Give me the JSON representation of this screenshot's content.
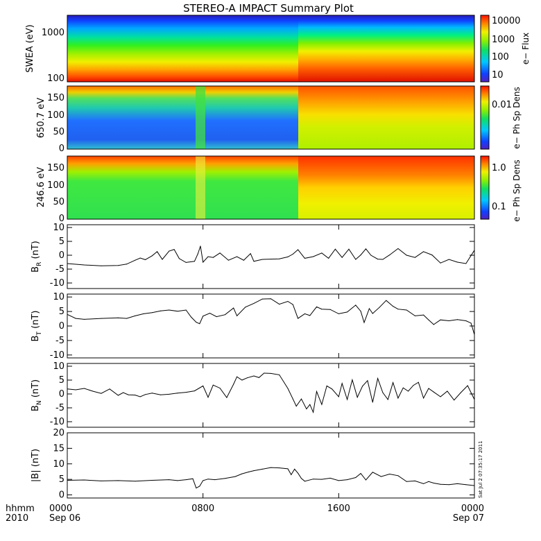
{
  "title": "STEREO-A IMPACT Summary Plot",
  "timestamp": "Sat Jul  2 07:35:17 2011",
  "time_axis": {
    "row1_label": "hhmm",
    "row2_label": "2010",
    "ticks": [
      {
        "t": 0,
        "top": "0000",
        "bottom": "Sep 06"
      },
      {
        "t": 8,
        "top": "0800",
        "bottom": ""
      },
      {
        "t": 16,
        "top": "1600",
        "bottom": ""
      },
      {
        "t": 24,
        "top": "0000",
        "bottom": "Sep 07"
      }
    ]
  },
  "chart_data": [
    {
      "type": "heatmap",
      "ylabel": "SWEA (eV)",
      "y_scale": "log",
      "ylim": [
        100,
        2000
      ],
      "yticks": [
        "1000",
        "100"
      ],
      "colorbar_label": "e− Flux",
      "colorbar_scale": "log",
      "colorbar_ticks": [
        "10000",
        "1000",
        "100",
        "10"
      ],
      "description_of_structure": "energy spectrogram, flux decreasing with energy; brighter after ~13:00"
    },
    {
      "type": "heatmap",
      "ylabel": "650.7 eV",
      "ylim": [
        0,
        180
      ],
      "yticks": [
        "150",
        "100",
        "50",
        "0"
      ],
      "colorbar_label": "e− Ph Sp Dens",
      "colorbar_scale": "log",
      "colorbar_ticks": [
        "0.01"
      ]
    },
    {
      "type": "heatmap",
      "ylabel": "246.6 eV",
      "ylim": [
        0,
        180
      ],
      "yticks": [
        "150",
        "100",
        "50",
        "0"
      ],
      "colorbar_label": "e− Ph Sp Dens",
      "colorbar_scale": "log",
      "colorbar_ticks": [
        "1.0",
        "0.1"
      ]
    },
    {
      "type": "line",
      "ylabel": "B",
      "ylabel_sub": "R",
      "ylabel_unit": "(nT)",
      "ylim": [
        -12,
        11
      ],
      "yticks": [
        "10",
        "5",
        "0",
        "-5",
        "-10"
      ],
      "x_hours": [
        0,
        1,
        2,
        3,
        3.5,
        4,
        4.3,
        4.6,
        5,
        5.3,
        5.6,
        6,
        6.3,
        6.6,
        7,
        7.5,
        7.7,
        7.85,
        8,
        8.3,
        8.6,
        9,
        9.5,
        10,
        10.4,
        10.8,
        11,
        11.5,
        12,
        12.5,
        13,
        13.3,
        13.6,
        14,
        14.5,
        15,
        15.4,
        15.8,
        16.2,
        16.6,
        17,
        17.3,
        17.6,
        17.9,
        18.3,
        18.6,
        19,
        19.5,
        20,
        20.5,
        21,
        21.5,
        22,
        22.5,
        23,
        23.5,
        24
      ],
      "values": [
        -3,
        -3.5,
        -3.8,
        -3.7,
        -3.2,
        -1.8,
        -1,
        -1.6,
        -0.2,
        1.3,
        -1.5,
        1.5,
        2.1,
        -1.2,
        -2.6,
        -2.2,
        0.5,
        3.3,
        -2.5,
        -0.5,
        -0.8,
        0.8,
        -1.8,
        -0.5,
        -1.8,
        0.6,
        -2.2,
        -1.5,
        -1.4,
        -1.3,
        -0.6,
        0.4,
        2,
        -1.1,
        -0.5,
        0.8,
        -1.1,
        2.2,
        -0.8,
        2.2,
        -1.5,
        0.1,
        2.3,
        0,
        -1.4,
        -1.5,
        0.1,
        2.4,
        0,
        -0.8,
        1.3,
        0.1,
        -2.8,
        -1.5,
        -2.5,
        -3,
        1.8
      ]
    },
    {
      "type": "line",
      "ylabel": "B",
      "ylabel_sub": "T",
      "ylabel_unit": "(nT)",
      "ylim": [
        -11,
        11
      ],
      "yticks": [
        "10",
        "5",
        "0",
        "-5",
        "-10"
      ],
      "x_hours": [
        0,
        0.5,
        1,
        2,
        3,
        3.5,
        4,
        4.5,
        5,
        5.5,
        6,
        6.5,
        7,
        7.3,
        7.6,
        7.8,
        8,
        8.4,
        8.8,
        9.3,
        9.8,
        10,
        10.5,
        11,
        11.5,
        12,
        12.5,
        13,
        13.3,
        13.6,
        14,
        14.3,
        14.7,
        15,
        15.5,
        16,
        16.5,
        17,
        17.3,
        17.5,
        17.8,
        18,
        18.4,
        18.8,
        19.2,
        19.5,
        20,
        20.5,
        21,
        21.3,
        21.6,
        22,
        22.5,
        23,
        23.5,
        23.8,
        24
      ],
      "values": [
        4,
        2.6,
        2.3,
        2.6,
        2.8,
        2.6,
        3.5,
        4.2,
        4.6,
        5.2,
        5.5,
        5.1,
        5.5,
        3.1,
        1.3,
        0.8,
        3.4,
        4.4,
        3.2,
        3.9,
        6.2,
        3.5,
        6.5,
        7.8,
        9.3,
        9.4,
        7.5,
        8.5,
        7.4,
        2.6,
        4.2,
        3.6,
        6.6,
        5.8,
        5.7,
        4.2,
        4.8,
        7.2,
        5.1,
        1.2,
        6,
        4.3,
        6.4,
        8.8,
        6.8,
        5.8,
        5.5,
        3.5,
        3.8,
        2.1,
        0.5,
        2.1,
        1.8,
        2.2,
        1.8,
        1,
        -3
      ]
    },
    {
      "type": "line",
      "ylabel": "B",
      "ylabel_sub": "N",
      "ylabel_unit": "(nT)",
      "ylim": [
        -12,
        11
      ],
      "yticks": [
        "10",
        "5",
        "0",
        "-5",
        "-10"
      ],
      "x_hours": [
        0,
        0.5,
        1,
        1.5,
        2,
        2.5,
        3,
        3.3,
        3.6,
        4,
        4.3,
        4.6,
        5,
        5.5,
        6,
        6.5,
        7,
        7.5,
        8,
        8.3,
        8.6,
        9,
        9.4,
        9.8,
        10,
        10.3,
        10.6,
        11,
        11.3,
        11.6,
        12,
        12.5,
        13,
        13.3,
        13.5,
        13.8,
        14.1,
        14.3,
        14.5,
        14.7,
        15,
        15.3,
        15.6,
        16,
        16.2,
        16.5,
        16.8,
        17.1,
        17.4,
        17.7,
        18,
        18.3,
        18.6,
        18.9,
        19.2,
        19.5,
        19.8,
        20.1,
        20.4,
        20.7,
        21,
        21.3,
        21.6,
        22,
        22.4,
        22.8,
        23.2,
        23.6,
        24
      ],
      "values": [
        1.8,
        1.5,
        2,
        1,
        0.2,
        1.8,
        -0.5,
        0.5,
        -0.3,
        -0.4,
        -1,
        -0.2,
        0.3,
        -0.3,
        -0.1,
        0.3,
        0.6,
        1.1,
        2.9,
        -1.2,
        3.2,
        2.1,
        -1.3,
        3.5,
        6.2,
        5,
        5.8,
        6.5,
        5.9,
        7.5,
        7.4,
        6.9,
        2,
        -1.8,
        -4.4,
        -1.8,
        -5.4,
        -3.8,
        -6.6,
        0.9,
        -3.8,
        2.9,
        1.8,
        -1,
        3.8,
        -2,
        5.1,
        -1.2,
        2.8,
        4.8,
        -3,
        5.6,
        0.5,
        -2,
        4.1,
        -1.5,
        2.2,
        1,
        3.1,
        4.2,
        -1.5,
        2,
        0.7,
        -1,
        1,
        -2.2,
        0.5,
        3,
        -2
      ]
    },
    {
      "type": "line",
      "ylabel": "|B|",
      "ylabel_unit": "(nT)",
      "ylim": [
        -1,
        20
      ],
      "yticks": [
        "20",
        "15",
        "10",
        "5",
        "0"
      ],
      "x_hours": [
        0,
        1,
        2,
        3,
        4,
        5,
        6,
        6.5,
        7,
        7.4,
        7.6,
        7.8,
        8,
        8.3,
        8.7,
        9.3,
        9.9,
        10.3,
        10.7,
        11,
        11.5,
        12,
        12.5,
        13,
        13.2,
        13.4,
        13.6,
        13.8,
        14,
        14.5,
        15,
        15.5,
        16,
        16.5,
        17,
        17.3,
        17.6,
        18,
        18.5,
        19,
        19.5,
        20,
        20.5,
        21,
        21.3,
        21.6,
        22,
        22.5,
        23,
        23.5,
        24
      ],
      "values": [
        4.7,
        4.8,
        4.5,
        4.6,
        4.4,
        4.7,
        4.9,
        4.6,
        4.9,
        5.2,
        2.2,
        2.8,
        4.6,
        5.1,
        4.9,
        5.3,
        5.9,
        6.8,
        7.4,
        7.8,
        8.3,
        8.8,
        8.7,
        8.4,
        6.5,
        8.3,
        7,
        5.3,
        4.4,
        5.1,
        5,
        5.4,
        4.6,
        4.9,
        5.6,
        6.9,
        4.8,
        7.3,
        5.9,
        6.7,
        6.2,
        4.3,
        4.5,
        3.6,
        4.3,
        3.8,
        3.4,
        3.3,
        3.6,
        3.3,
        3
      ]
    }
  ]
}
